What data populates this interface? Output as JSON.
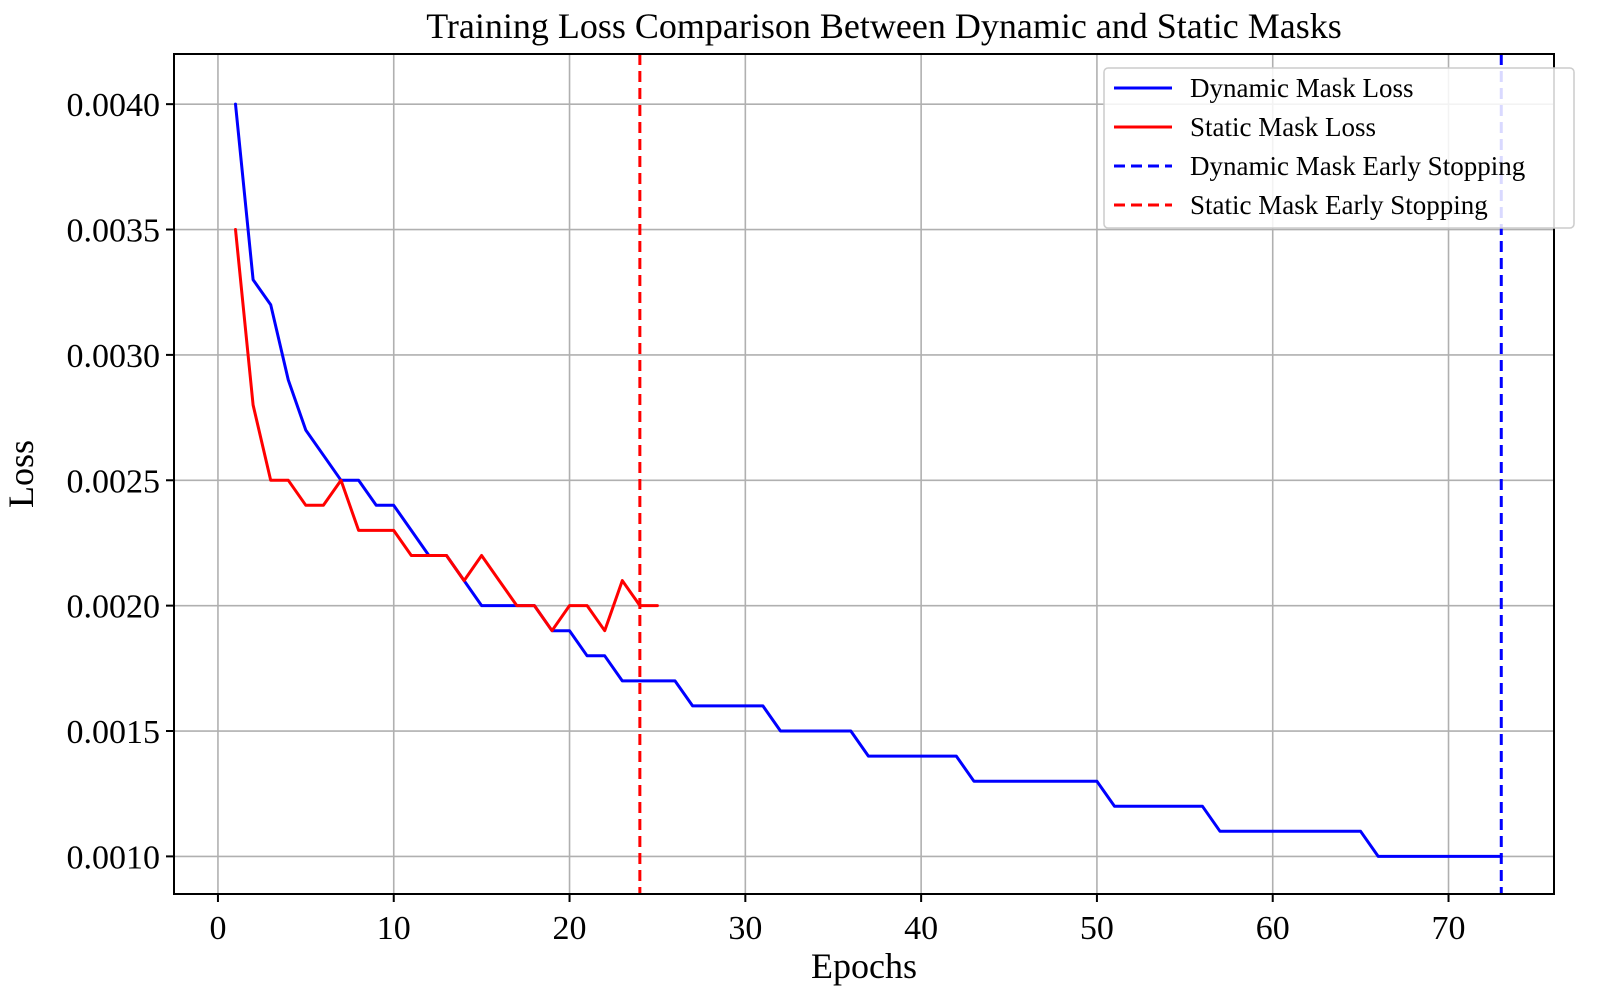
{
  "chart_data": {
    "type": "line",
    "title": "Training Loss Comparison Between Dynamic and Static Masks",
    "xlabel": "Epochs",
    "ylabel": "Loss",
    "xlim": [
      -2.5,
      76
    ],
    "ylim": [
      0.00085,
      0.0042
    ],
    "xticks": [
      0,
      10,
      20,
      30,
      40,
      50,
      60,
      70
    ],
    "xtick_labels": [
      "0",
      "10",
      "20",
      "30",
      "40",
      "50",
      "60",
      "70"
    ],
    "yticks": [
      0.001,
      0.0015,
      0.002,
      0.0025,
      0.003,
      0.0035,
      0.004
    ],
    "ytick_labels": [
      "0.0010",
      "0.0015",
      "0.0020",
      "0.0025",
      "0.0030",
      "0.0035",
      "0.0040"
    ],
    "grid": true,
    "legend_position": "top-right",
    "series": [
      {
        "name": "Dynamic Mask Loss",
        "color": "#0000ff",
        "style": "solid",
        "x": [
          1,
          2,
          3,
          4,
          5,
          6,
          7,
          8,
          9,
          10,
          11,
          12,
          13,
          14,
          15,
          16,
          17,
          18,
          19,
          20,
          21,
          22,
          23,
          24,
          25,
          26,
          27,
          28,
          29,
          30,
          31,
          32,
          33,
          34,
          35,
          36,
          37,
          38,
          39,
          40,
          41,
          42,
          43,
          44,
          45,
          46,
          47,
          48,
          49,
          50,
          51,
          52,
          53,
          54,
          55,
          56,
          57,
          58,
          59,
          60,
          61,
          62,
          63,
          64,
          65,
          66,
          67,
          68,
          69,
          70,
          71,
          72,
          73
        ],
        "values": [
          0.004,
          0.0033,
          0.0032,
          0.0029,
          0.0027,
          0.0026,
          0.0025,
          0.0025,
          0.0024,
          0.0024,
          0.0023,
          0.0022,
          0.0022,
          0.0021,
          0.002,
          0.002,
          0.002,
          0.002,
          0.0019,
          0.0019,
          0.0018,
          0.0018,
          0.0017,
          0.0017,
          0.0017,
          0.0017,
          0.0016,
          0.0016,
          0.0016,
          0.0016,
          0.0016,
          0.0015,
          0.0015,
          0.0015,
          0.0015,
          0.0015,
          0.0014,
          0.0014,
          0.0014,
          0.0014,
          0.0014,
          0.0014,
          0.0013,
          0.0013,
          0.0013,
          0.0013,
          0.0013,
          0.0013,
          0.0013,
          0.0013,
          0.0012,
          0.0012,
          0.0012,
          0.0012,
          0.0012,
          0.0012,
          0.0011,
          0.0011,
          0.0011,
          0.0011,
          0.0011,
          0.0011,
          0.0011,
          0.0011,
          0.0011,
          0.001,
          0.001,
          0.001,
          0.001,
          0.001,
          0.001,
          0.001,
          0.001
        ]
      },
      {
        "name": "Static Mask Loss",
        "color": "#ff0000",
        "style": "solid",
        "x": [
          1,
          2,
          3,
          4,
          5,
          6,
          7,
          8,
          9,
          10,
          11,
          12,
          13,
          14,
          15,
          16,
          17,
          18,
          19,
          20,
          21,
          22,
          23,
          24,
          25
        ],
        "values": [
          0.0035,
          0.0028,
          0.0025,
          0.0025,
          0.0024,
          0.0024,
          0.0025,
          0.0023,
          0.0023,
          0.0023,
          0.0022,
          0.0022,
          0.0022,
          0.0021,
          0.0022,
          0.0021,
          0.002,
          0.002,
          0.0019,
          0.002,
          0.002,
          0.0019,
          0.0021,
          0.002,
          0.002
        ]
      }
    ],
    "vlines": [
      {
        "name": "Dynamic Mask Early Stopping",
        "x": 73,
        "color": "#0000ff",
        "style": "dashed"
      },
      {
        "name": "Static Mask Early Stopping",
        "x": 24,
        "color": "#ff0000",
        "style": "dashed"
      }
    ],
    "legend": [
      {
        "label": "Dynamic Mask Loss",
        "color": "#0000ff",
        "style": "solid"
      },
      {
        "label": "Static Mask Loss",
        "color": "#ff0000",
        "style": "solid"
      },
      {
        "label": "Dynamic Mask Early Stopping",
        "color": "#0000ff",
        "style": "dashed"
      },
      {
        "label": "Static Mask Early Stopping",
        "color": "#ff0000",
        "style": "dashed"
      }
    ]
  }
}
